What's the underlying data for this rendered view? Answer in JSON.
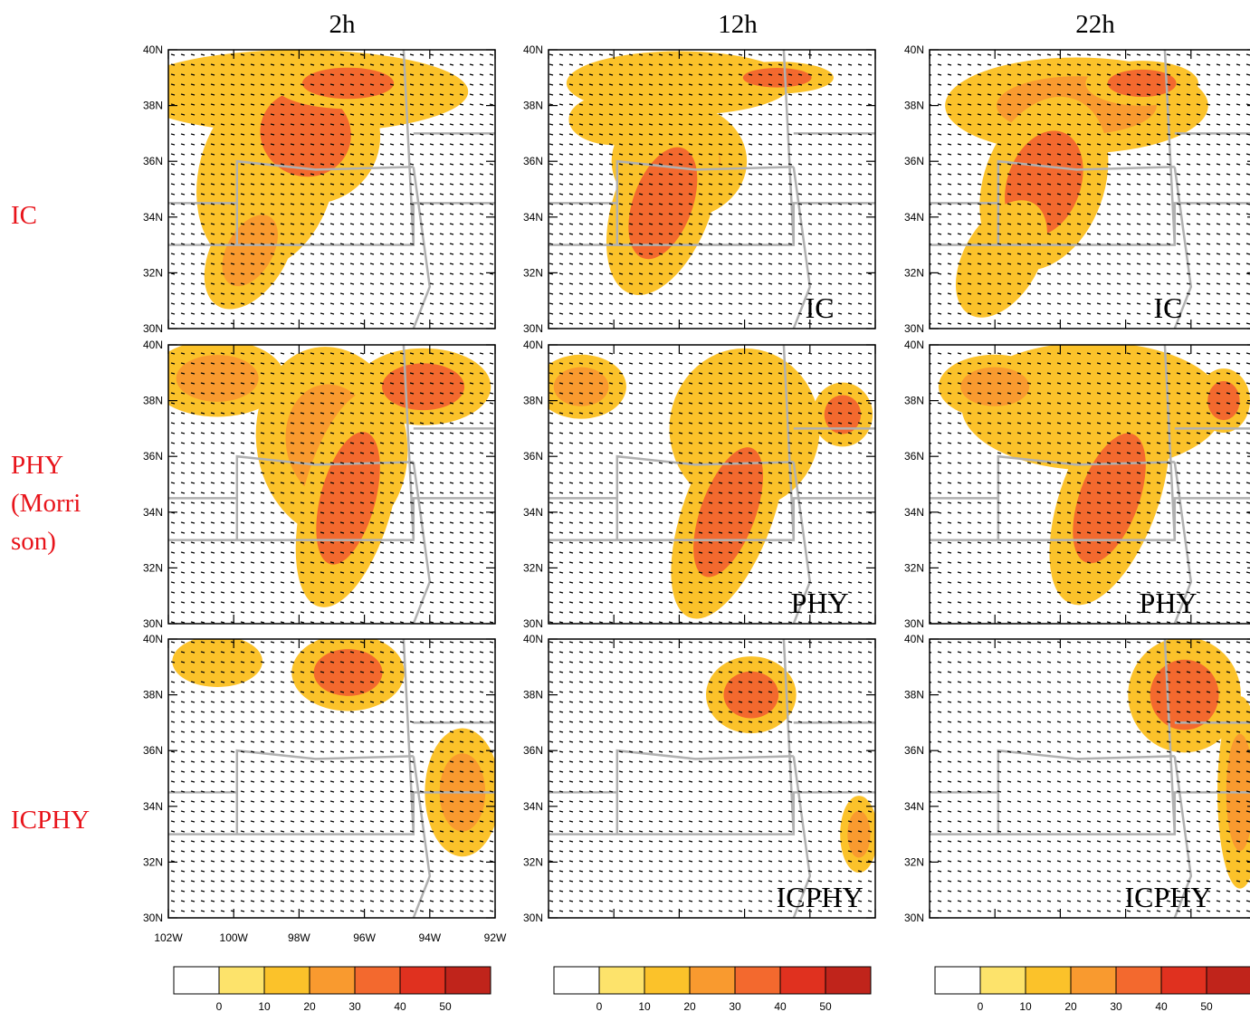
{
  "column_titles": [
    "2h",
    "12h",
    "22h"
  ],
  "row_labels": [
    [
      "IC"
    ],
    [
      "PHY",
      "(Morri",
      "son)"
    ],
    [
      "ICPHY"
    ]
  ],
  "panel_labels": [
    "IC",
    "PHY",
    "ICPHY"
  ],
  "lat_range": [
    30,
    40
  ],
  "lon_range": [
    -102,
    -92
  ],
  "lat_ticks": [
    {
      "value": 30,
      "label": "30N"
    },
    {
      "value": 32,
      "label": "32N"
    },
    {
      "value": 34,
      "label": "34N"
    },
    {
      "value": 36,
      "label": "36N"
    },
    {
      "value": 38,
      "label": "38N"
    },
    {
      "value": 40,
      "label": "40N"
    }
  ],
  "lon_ticks": [
    {
      "value": -102,
      "label": "102W"
    },
    {
      "value": -100,
      "label": "100W"
    },
    {
      "value": -98,
      "label": "98W"
    },
    {
      "value": -96,
      "label": "96W"
    },
    {
      "value": -94,
      "label": "94W"
    },
    {
      "value": -92,
      "label": "92W"
    }
  ],
  "colorbar": {
    "levels": [
      0,
      10,
      20,
      30,
      40,
      50
    ],
    "colors": [
      "#ffffff",
      "#fde36b",
      "#fbc22a",
      "#f99a2f",
      "#f3692e",
      "#e0311f",
      "#c0241b"
    ]
  }
}
